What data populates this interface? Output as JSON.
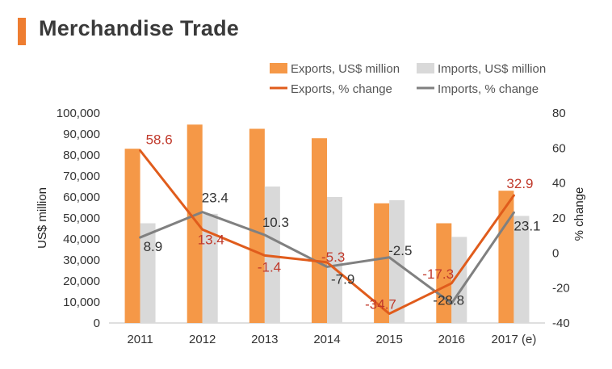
{
  "title": "Merchandise Trade",
  "colors": {
    "accent": "#ee7d31",
    "exports_bar": "#f59847",
    "imports_bar": "#d9d9d9",
    "exports_line": "#e05c1c",
    "imports_line": "#808080",
    "exports_label": "#c0392b",
    "imports_label": "#333333"
  },
  "chart_data": {
    "type": "bar",
    "categories": [
      "2011",
      "2012",
      "2013",
      "2014",
      "2015",
      "2016",
      "2017 (e)"
    ],
    "ylabel": "US$ million",
    "ylabel2": "% change",
    "ylim": [
      0,
      100000
    ],
    "y2lim": [
      -40,
      80
    ],
    "yticks": [
      "0",
      "10,000",
      "20,000",
      "30,000",
      "40,000",
      "50,000",
      "60,000",
      "70,000",
      "80,000",
      "90,000",
      "100,000"
    ],
    "y2ticks": [
      "-40",
      "-20",
      "0",
      "20",
      "40",
      "60",
      "80"
    ],
    "legend_position": "top-right",
    "series": [
      {
        "name": "Exports, US$ million",
        "kind": "bar",
        "axis": "left",
        "values": [
          83000,
          94500,
          92500,
          88000,
          57000,
          47500,
          63000
        ]
      },
      {
        "name": "Imports, US$ million",
        "kind": "bar",
        "axis": "left",
        "values": [
          47500,
          52000,
          65000,
          60000,
          58500,
          41000,
          51000
        ]
      },
      {
        "name": "Exports, % change",
        "kind": "line",
        "axis": "right",
        "values": [
          58.6,
          13.4,
          -1.4,
          -5.3,
          -34.7,
          -17.3,
          32.9
        ],
        "labels": [
          "58.6",
          "13.4",
          "-1.4",
          "-5.3",
          "-34.7",
          "-17.3",
          "32.9"
        ]
      },
      {
        "name": "Imports, % change",
        "kind": "line",
        "axis": "right",
        "values": [
          8.9,
          23.4,
          10.3,
          -7.9,
          -2.5,
          -28.8,
          23.1
        ],
        "labels": [
          "8.9",
          "23.4",
          "10.3",
          "-7.9",
          "-2.5",
          "-28.8",
          "23.1"
        ]
      }
    ]
  }
}
